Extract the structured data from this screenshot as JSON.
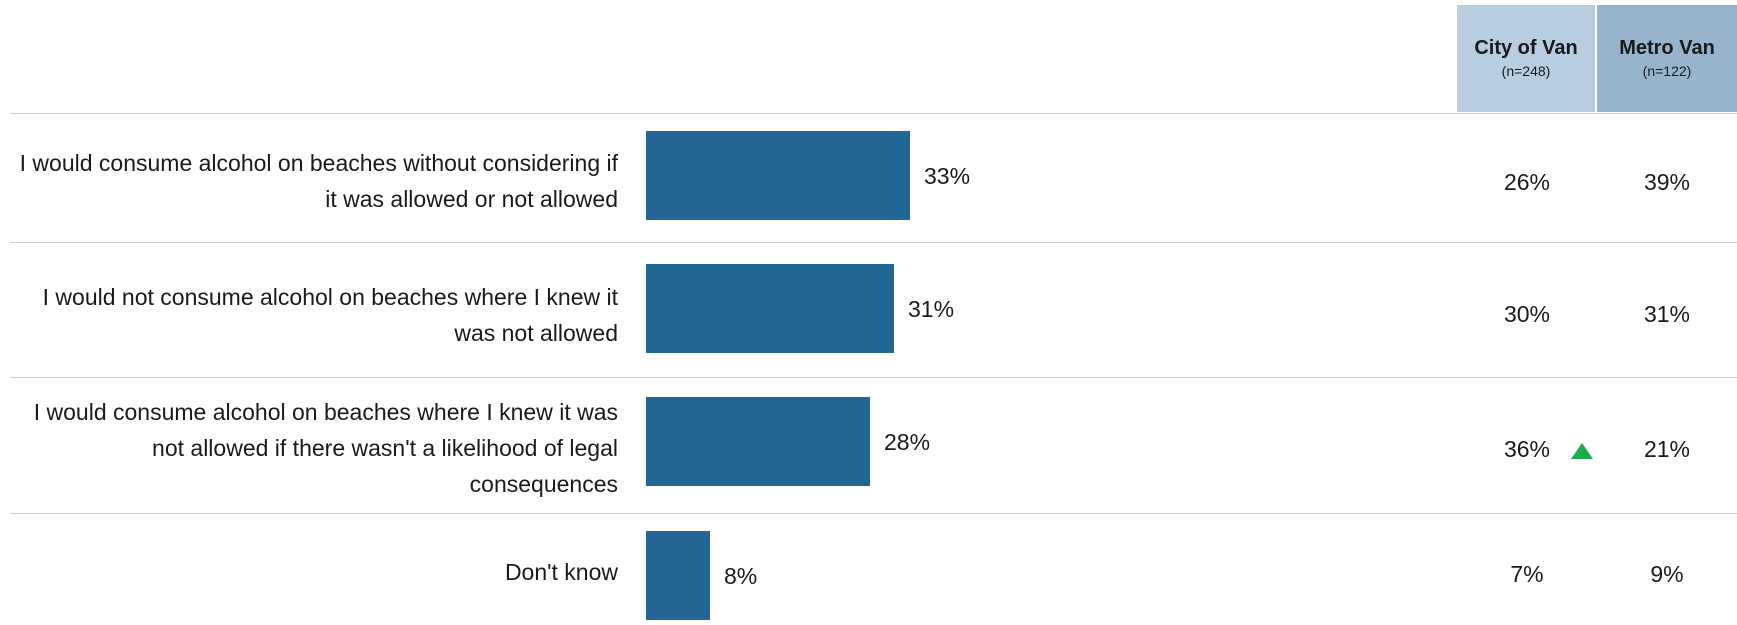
{
  "columns": [
    {
      "title": "City of Van",
      "n": "(n=248)"
    },
    {
      "title": "Metro Van",
      "n": "(n=122)"
    }
  ],
  "colors": {
    "bar": "#226694",
    "header_a": "#b8cde0",
    "header_b": "#98b4cd",
    "up_arrow": "#1aab4b"
  },
  "chart_data": {
    "type": "bar",
    "orientation": "horizontal",
    "categories": [
      "I would consume alcohol on beaches without considering if it was allowed or not allowed",
      "I would not consume alcohol on beaches where I knew it was not allowed",
      "I would consume alcohol on beaches where I knew it was not allowed if there wasn't a likelihood of legal consequences",
      "Don't know"
    ],
    "values": [
      33,
      31,
      28,
      8
    ],
    "value_labels": [
      "33%",
      "31%",
      "28%",
      "8%"
    ],
    "xlim": [
      0,
      100
    ],
    "grid": false
  },
  "rows": [
    {
      "label": "I would consume alcohol on beaches without considering if it was allowed or not allowed",
      "city": "26%",
      "metro": "39%",
      "city_up": false
    },
    {
      "label": "I would not consume alcohol on beaches where I knew it was not allowed",
      "city": "30%",
      "metro": "31%",
      "city_up": false
    },
    {
      "label": "I would consume alcohol on beaches where I knew it was not allowed if there wasn't a likelihood of legal consequences",
      "city": "36%",
      "metro": "21%",
      "city_up": true
    },
    {
      "label": "Don't know",
      "city": "7%",
      "metro": "9%",
      "city_up": false
    }
  ],
  "icons": {
    "significance": "up-triangle-icon"
  }
}
